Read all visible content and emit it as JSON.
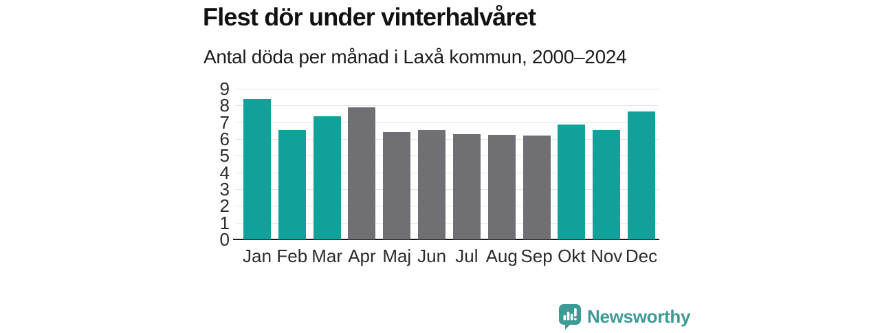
{
  "title": "Flest dör under vinterhalvåret",
  "subtitle": "Antal döda per månad i Laxå kommun, 2000–2024",
  "branding": {
    "logo_text": "Newsworthy",
    "logo_icon": "newsworthy-speech-bubble-bar-chart-icon"
  },
  "colors": {
    "winter": "#10a29a",
    "summer": "#706f74",
    "axis": "#1a1a1a",
    "gridline": "#e3e3e3",
    "tick_label": "#2b2b2b",
    "logo": "#3d9a95"
  },
  "chart_data": {
    "type": "bar",
    "title": "Flest dör under vinterhalvåret",
    "subtitle": "Antal döda per månad i Laxå kommun, 2000–2024",
    "categories": [
      "Jan",
      "Feb",
      "Mar",
      "Apr",
      "Maj",
      "Jun",
      "Jul",
      "Aug",
      "Sep",
      "Okt",
      "Nov",
      "Dec"
    ],
    "values": [
      8.4,
      6.55,
      7.35,
      7.9,
      6.4,
      6.55,
      6.3,
      6.25,
      6.2,
      6.85,
      6.55,
      7.65
    ],
    "bar_colors": [
      "winter",
      "winter",
      "winter",
      "summer",
      "summer",
      "summer",
      "summer",
      "summer",
      "summer",
      "winter",
      "winter",
      "winter"
    ],
    "xlabel": "",
    "ylabel": "",
    "ylim": [
      0,
      9
    ],
    "yticks": [
      0,
      1,
      2,
      3,
      4,
      5,
      6,
      7,
      8,
      9
    ],
    "grid": true,
    "legend": false
  }
}
